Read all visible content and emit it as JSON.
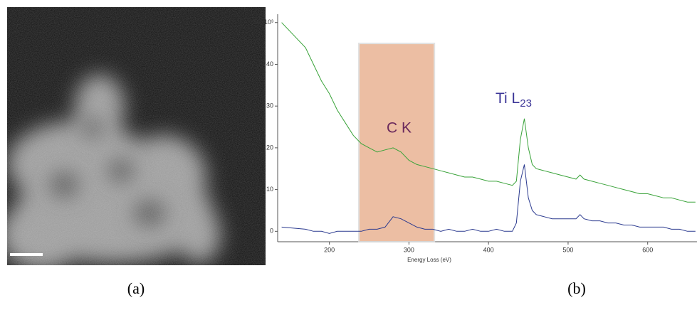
{
  "chart_data": {
    "type": "line",
    "x_label": "Energy Loss (eV)",
    "x": [
      140,
      170,
      180,
      190,
      200,
      210,
      220,
      230,
      240,
      250,
      260,
      270,
      280,
      290,
      300,
      310,
      320,
      330,
      340,
      350,
      360,
      370,
      380,
      390,
      400,
      410,
      420,
      430,
      435,
      440,
      445,
      450,
      455,
      460,
      470,
      480,
      490,
      500,
      510,
      515,
      520,
      530,
      540,
      550,
      560,
      570,
      580,
      590,
      600,
      610,
      620,
      630,
      640,
      650,
      660
    ],
    "series": [
      {
        "color": "#3aa33a",
        "values": [
          50,
          44,
          40,
          36,
          33,
          29,
          26,
          23,
          21,
          20,
          19,
          19.5,
          20,
          19,
          17,
          16,
          15.5,
          15,
          14.5,
          14,
          13.5,
          13,
          13,
          12.5,
          12,
          12,
          11.5,
          11,
          12,
          22,
          27,
          20,
          16,
          15,
          14.5,
          14,
          13.5,
          13,
          12.5,
          13.5,
          12.5,
          12,
          11.5,
          11,
          10.5,
          10,
          9.5,
          9,
          9,
          8.5,
          8,
          8,
          7.5,
          7,
          7
        ]
      },
      {
        "color": "#2b3a8f",
        "values": [
          1,
          0.5,
          0,
          0,
          -0.5,
          0,
          0,
          0,
          0,
          0.5,
          0.5,
          1,
          3.5,
          3,
          2,
          1,
          0.5,
          0.5,
          0,
          0.5,
          0,
          0,
          0.5,
          0,
          0,
          0.5,
          0,
          0,
          2,
          12,
          16,
          8,
          5,
          4,
          3.5,
          3,
          3,
          3,
          3,
          4,
          3,
          2.5,
          2.5,
          2,
          2,
          1.5,
          1.5,
          1,
          1,
          1,
          1,
          0.5,
          0.5,
          0,
          0
        ]
      }
    ],
    "shaded_range": [
      237,
      332
    ],
    "shaded_color": "#e9b393",
    "xlim": [
      135,
      662
    ],
    "xticks": [
      200,
      300,
      400,
      500,
      600
    ],
    "ylim": [
      -2.5,
      52
    ],
    "yticks": [
      0,
      10,
      20,
      30,
      40,
      {
        "value": 50,
        "label": "50x10³"
      }
    ],
    "annotations": [
      {
        "text": "C K"
      },
      {
        "text": "Ti L",
        "sub": "23"
      }
    ],
    "panel_labels": [
      "(a)",
      "(b)"
    ]
  }
}
